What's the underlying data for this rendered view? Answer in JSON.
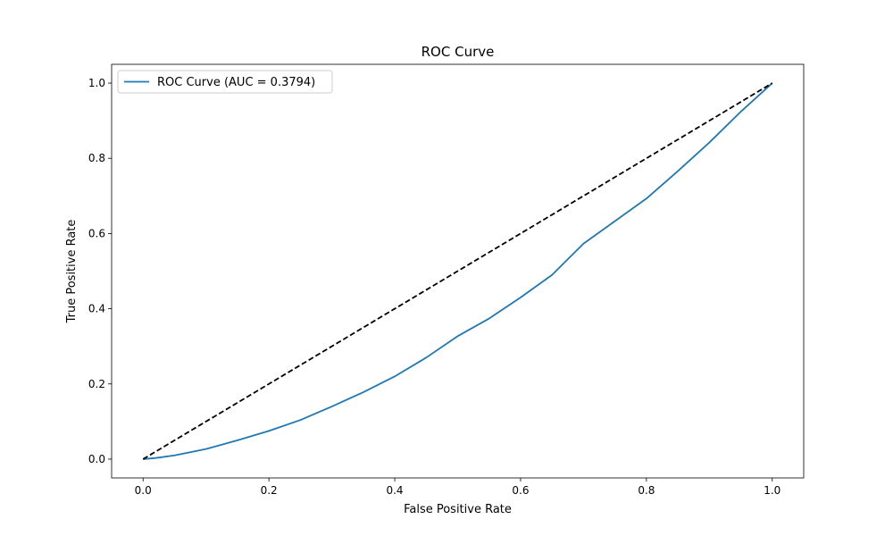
{
  "chart_data": {
    "type": "line",
    "title": "ROC Curve",
    "xlabel": "False Positive Rate",
    "ylabel": "True Positive Rate",
    "xlim": [
      -0.05,
      1.05
    ],
    "ylim": [
      -0.05,
      1.05
    ],
    "x_ticks": [
      0.0,
      0.2,
      0.4,
      0.6,
      0.8,
      1.0
    ],
    "y_ticks": [
      0.0,
      0.2,
      0.4,
      0.6,
      0.8,
      1.0
    ],
    "x_tick_labels": [
      "0.0",
      "0.2",
      "0.4",
      "0.6",
      "0.8",
      "1.0"
    ],
    "y_tick_labels": [
      "0.0",
      "0.2",
      "0.4",
      "0.6",
      "0.8",
      "1.0"
    ],
    "grid": false,
    "legend": {
      "placement": "upper-left",
      "entries": [
        "ROC Curve (AUC = 0.3794)"
      ]
    },
    "series": [
      {
        "name": "ROC Curve (AUC = 0.3794)",
        "color": "#1f77b4",
        "style": "solid",
        "x": [
          0.0,
          0.02,
          0.05,
          0.08,
          0.1,
          0.15,
          0.2,
          0.25,
          0.3,
          0.35,
          0.4,
          0.45,
          0.5,
          0.55,
          0.6,
          0.65,
          0.7,
          0.75,
          0.8,
          0.85,
          0.9,
          0.95,
          1.0
        ],
        "y": [
          0.0,
          0.003,
          0.01,
          0.02,
          0.027,
          0.05,
          0.075,
          0.104,
          0.14,
          0.178,
          0.22,
          0.27,
          0.327,
          0.374,
          0.43,
          0.49,
          0.573,
          0.633,
          0.693,
          0.766,
          0.842,
          0.924,
          1.0
        ]
      },
      {
        "name": "",
        "color": "#000000",
        "style": "dashed",
        "x": [
          0.0,
          1.0
        ],
        "y": [
          0.0,
          1.0
        ]
      }
    ]
  }
}
